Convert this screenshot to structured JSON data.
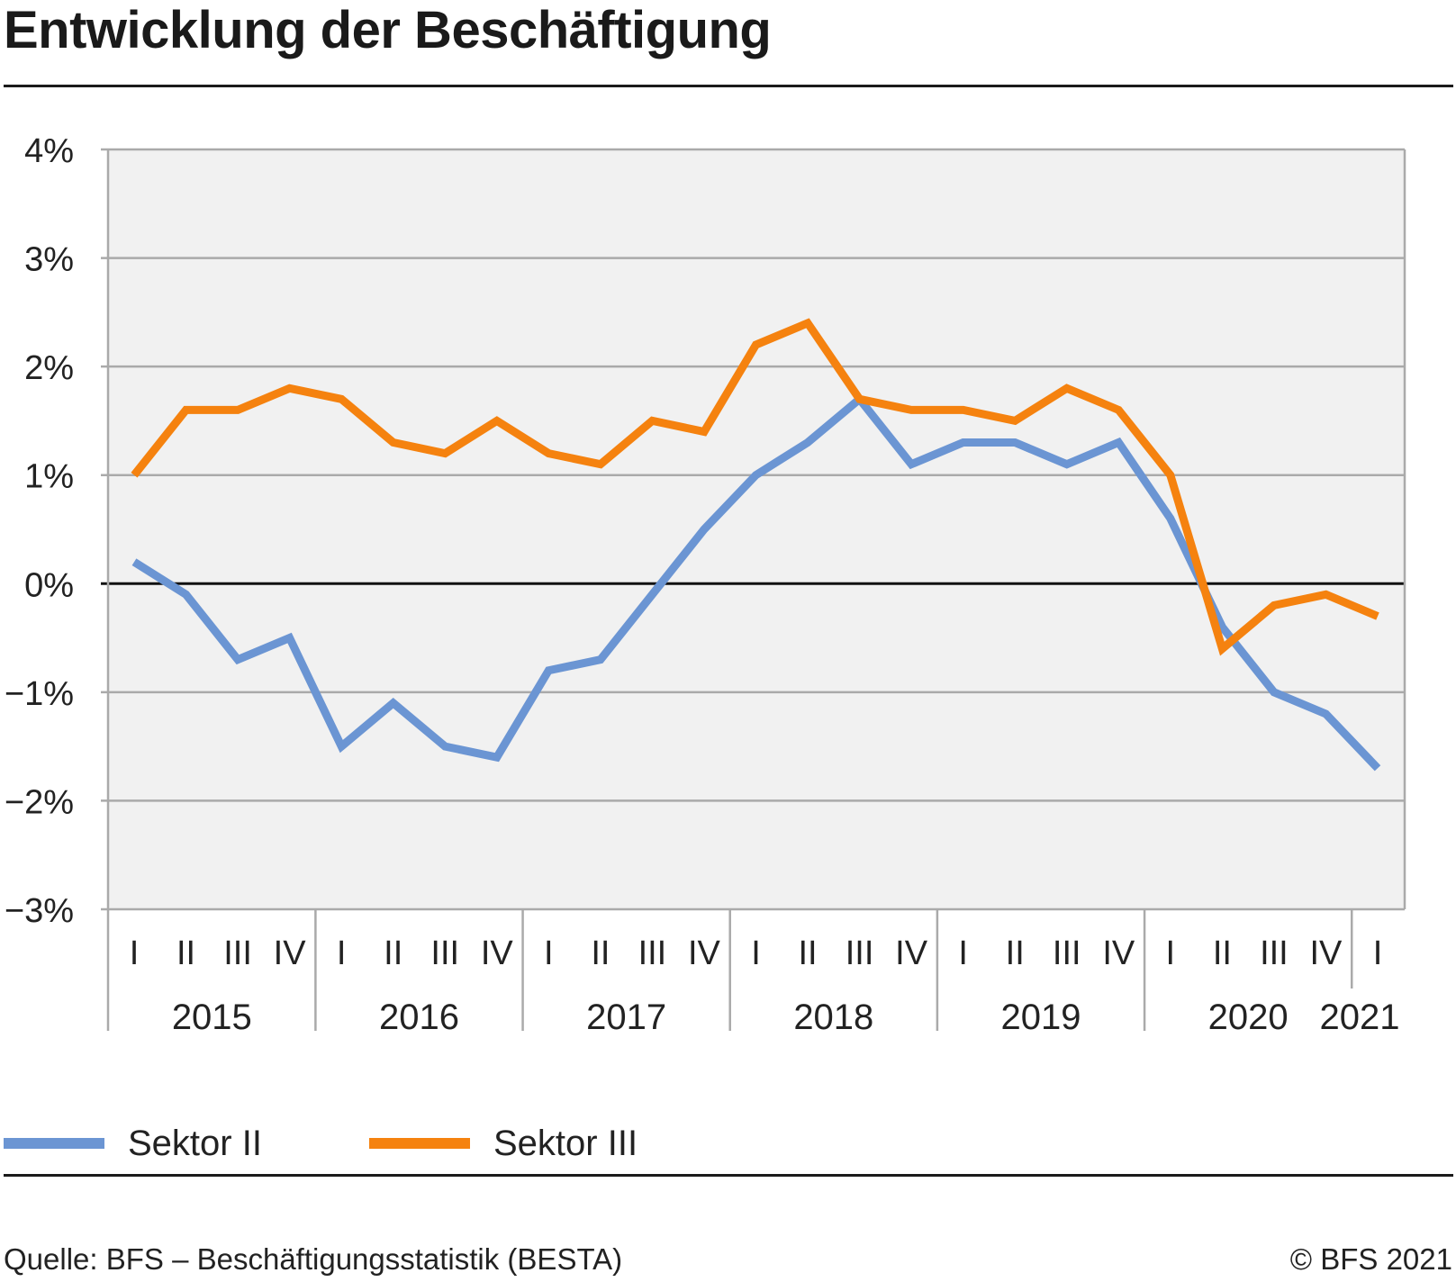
{
  "title": "Entwicklung der Beschäftigung",
  "source": "Quelle: BFS – Beschäftigungsstatistik (BESTA)",
  "copyright": "© BFS 2021",
  "chart_data": {
    "type": "line",
    "title": "Entwicklung der Beschäftigung",
    "xlabel": "",
    "ylabel": "",
    "ylim": [
      -3,
      4
    ],
    "yticks": [
      4,
      3,
      2,
      1,
      0,
      -1,
      -2,
      -3
    ],
    "ytick_labels": [
      "4%",
      "3%",
      "2%",
      "1%",
      "0%",
      "−1%",
      "−2%",
      "−3%"
    ],
    "grid": true,
    "legend": "bottom",
    "categories": [
      "I",
      "II",
      "III",
      "IV",
      "I",
      "II",
      "III",
      "IV",
      "I",
      "II",
      "III",
      "IV",
      "I",
      "II",
      "III",
      "IV",
      "I",
      "II",
      "III",
      "IV",
      "I",
      "II",
      "III",
      "IV",
      "I"
    ],
    "years": [
      {
        "label": "2015",
        "quarters": 4
      },
      {
        "label": "2016",
        "quarters": 4
      },
      {
        "label": "2017",
        "quarters": 4
      },
      {
        "label": "2018",
        "quarters": 4
      },
      {
        "label": "2019",
        "quarters": 4
      },
      {
        "label": "2020",
        "quarters": 4
      },
      {
        "label": "2021",
        "quarters": 1
      }
    ],
    "series": [
      {
        "name": "Sektor II",
        "color": "#6b95d3",
        "values": [
          0.2,
          -0.1,
          -0.7,
          -0.5,
          -1.5,
          -1.1,
          -1.5,
          -1.6,
          -0.8,
          -0.7,
          -0.1,
          0.5,
          1.0,
          1.3,
          1.7,
          1.1,
          1.3,
          1.3,
          1.1,
          1.3,
          0.6,
          -0.4,
          -1.0,
          -1.2,
          -1.7
        ]
      },
      {
        "name": "Sektor III",
        "color": "#f5820f",
        "values": [
          1.0,
          1.6,
          1.6,
          1.8,
          1.7,
          1.3,
          1.2,
          1.5,
          1.2,
          1.1,
          1.5,
          1.4,
          2.2,
          2.4,
          1.7,
          1.6,
          1.6,
          1.5,
          1.8,
          1.6,
          1.0,
          -0.6,
          -0.2,
          -0.1,
          -0.3
        ]
      }
    ]
  }
}
